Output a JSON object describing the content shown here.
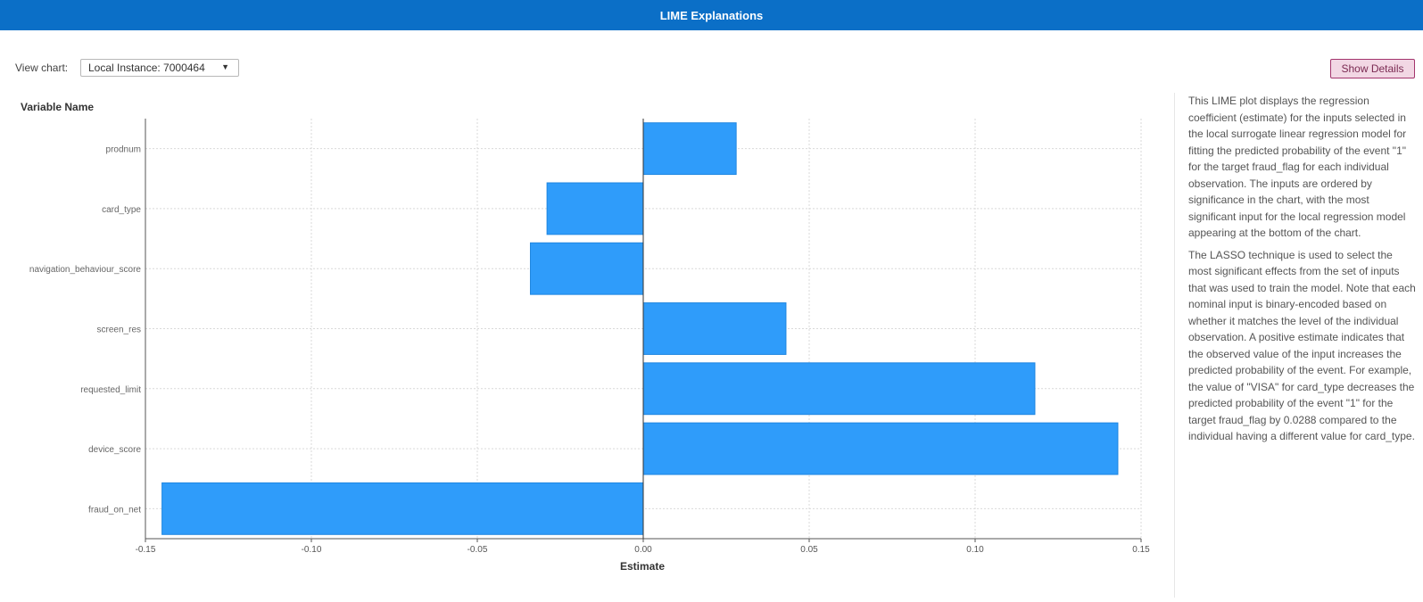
{
  "header": {
    "title": "LIME Explanations"
  },
  "toolbar": {
    "view_chart_label": "View chart:",
    "view_chart_selected": "Local Instance: 7000464",
    "show_details_label": "Show Details"
  },
  "colors": {
    "header": "#0b6fc7",
    "bar": "#2f9cfa",
    "bar_stroke": "#1f86e0"
  },
  "chart_data": {
    "type": "bar",
    "orientation": "horizontal",
    "categories": [
      "prodnum",
      "card_type",
      "navigation_behaviour_score",
      "screen_res",
      "requested_limit",
      "device_score",
      "fraud_on_net"
    ],
    "values": [
      0.028,
      -0.029,
      -0.034,
      0.043,
      0.118,
      0.143,
      -0.145
    ],
    "xlabel": "Estimate",
    "ylabel": "Variable Name",
    "xlim": [
      -0.15,
      0.15
    ],
    "xticks": [
      "-0.15",
      "-0.10",
      "-0.05",
      "0.00",
      "0.05",
      "0.10",
      "0.15"
    ],
    "xtick_values": [
      -0.15,
      -0.1,
      -0.05,
      0.0,
      0.05,
      0.1,
      0.15
    ],
    "grid": true
  },
  "description": {
    "paragraphs": [
      "This LIME plot displays the regression coefficient (estimate) for the inputs selected in the local surrogate linear regression model for fitting the predicted probability of the event \"1\" for the target fraud_flag for each individual observation. The inputs are ordered by significance in the chart, with the most significant input for the local regression model appearing at the bottom of the chart.",
      "The LASSO technique is used to select the most significant effects from the set of inputs that was used to train the model. Note that each nominal input is binary-encoded based on whether it matches the level of the individual observation. A positive estimate indicates that the observed value of the input increases the predicted probability of the event. For example, the value of \"VISA\" for card_type decreases the predicted probability of the event \"1\" for the target fraud_flag by 0.0288 compared to the individual having a different value for card_type."
    ]
  }
}
